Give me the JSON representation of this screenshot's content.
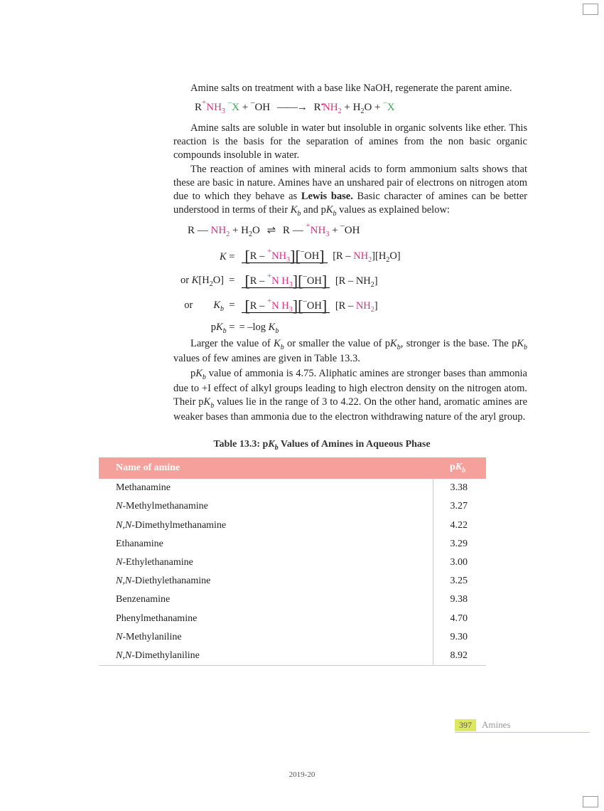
{
  "para1": "Amine salts on treatment with a base like NaOH, regenerate the parent amine.",
  "eq1": {
    "left_R": "R",
    "left_NH3": "NH",
    "left_NH3_sub": "3",
    "left_charge": "+",
    "X": "X",
    "X_charge": "–",
    "plus": " + ",
    "OH": "OH",
    "OH_charge": "–",
    "right_R": "R",
    "right_NH2": "NH",
    "right_NH2_sub": "2",
    "dots": "••",
    "H2O": "H",
    "H2O_sub": "2",
    "H2O_O": "O",
    "plus2": " + "
  },
  "para2": "Amine salts are soluble in water but insoluble in organic solvents like ether. This reaction is the basis for the separation of amines from the non basic organic compounds insoluble in water.",
  "para3a": "The reaction of amines with mineral acids to form ammonium salts shows that these are basic in nature. Amines have an unshared pair of electrons on nitrogen atom due to which they behave as ",
  "para3b": "Lewis base.",
  "para3c": " Basic character of amines can be better understood in terms of their ",
  "para3d": " and p",
  "para3e": " values as explained below:",
  "Kb": "K",
  "Kb_sub": "b",
  "eq2": {
    "R": "R",
    "dash": " — ",
    "NH2": "NH",
    "sub2": "2",
    "H2O": "H",
    "O": "O",
    "NH3": "NH",
    "sub3": "3",
    "plus": "+",
    "OH": "OH",
    "minus": "–"
  },
  "eqK": {
    "K": "K",
    "eq": " = ",
    "num_open": "[",
    "num_R": "R – ",
    "num_NH3": "NH",
    "num_3": "3",
    "num_plus": "+",
    "num_close": "]",
    "num_OH_open": "[",
    "num_OH": "OH",
    "num_OH_minus": "–",
    "num_OH_close": "]",
    "den_open": "[",
    "den_R": "R – ",
    "den_NH2": "NH",
    "den_2": "2",
    "den_close": "]",
    "den_H2O_open": "[",
    "den_H": "H",
    "den_H2": "2",
    "den_O": "O",
    "den_H2O_close": "]"
  },
  "eqK2_label": "or ",
  "eqK2_K": "K",
  "eqK2_H2O": "[H",
  "eqK2_2": "2",
  "eqK2_O": "O]",
  "eqK3_label": "or",
  "eqK3_Kb": "K",
  "eqK3_b": "b",
  "eqPkb": "p",
  "eqPkb2": " = –log ",
  "para4a": "Larger the value of ",
  "para4b": " or smaller the value of p",
  "para4c": ", stronger is the base. The p",
  "para4d": " values of few amines are given in Table 13.3.",
  "para5a": "p",
  "para5b": " value of ammonia is 4.75. Aliphatic amines are stronger bases than ammonia due to +I effect of alkyl groups leading to high electron density on the nitrogen atom.  Their p",
  "para5c": " values lie in the range of 3 to 4.22.  On the other hand, aromatic amines are weaker bases than ammonia due to the electron withdrawing nature of the aryl group.",
  "table": {
    "title_pre": "Table 13.3:  p",
    "title_post": " Values of Amines in Aqueous Phase",
    "header_name": "Name of amine",
    "header_pkb_p": "p",
    "header_pkb_K": "K",
    "header_pkb_b": "b",
    "rows": [
      {
        "name_pre": "",
        "name_ital": "",
        "name": "Methanamine",
        "pkb": "3.38"
      },
      {
        "name_pre": "",
        "name_ital": "N",
        "name": "-Methylmethanamine",
        "pkb": "3.27"
      },
      {
        "name_pre": "",
        "name_ital": "N,N",
        "name": "-Dimethylmethanamine",
        "pkb": "4.22"
      },
      {
        "name_pre": "",
        "name_ital": "",
        "name": "Ethanamine",
        "pkb": "3.29"
      },
      {
        "name_pre": "",
        "name_ital": "N",
        "name": "-Ethylethanamine",
        "pkb": "3.00"
      },
      {
        "name_pre": "",
        "name_ital": "N,N",
        "name": "-Diethylethanamine",
        "pkb": "3.25"
      },
      {
        "name_pre": "",
        "name_ital": "",
        "name": "Benzenamine",
        "pkb": "9.38"
      },
      {
        "name_pre": "",
        "name_ital": "",
        "name": "Phenylmethanamine",
        "pkb": "4.70"
      },
      {
        "name_pre": "",
        "name_ital": "N",
        "name": "-Methylaniline",
        "pkb": "9.30"
      },
      {
        "name_pre": "",
        "name_ital": "N,N",
        "name": "-Dimethylaniline",
        "pkb": "8.92"
      }
    ]
  },
  "page_number": "397",
  "chapter": "Amines",
  "year": "2019-20"
}
